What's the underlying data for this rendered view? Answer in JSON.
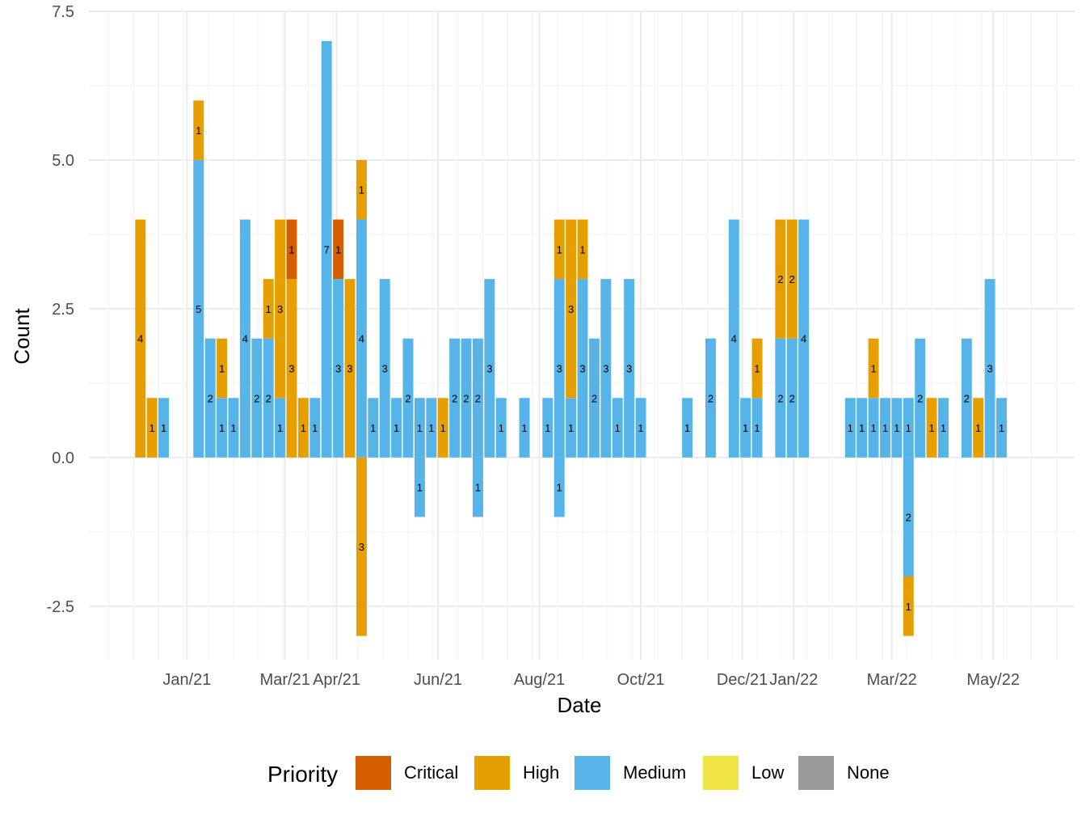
{
  "chart_data": {
    "type": "bar",
    "stacked": true,
    "xlabel": "Date",
    "ylabel": "Count",
    "ylim": [
      -3.4,
      7.5
    ],
    "y_ticks": [
      -2.5,
      0.0,
      2.5,
      5.0,
      7.5
    ],
    "y_tick_labels": [
      "-2.5",
      "0.0",
      "2.5",
      "5.0",
      "7.5"
    ],
    "x_range": [
      "2020-11-03",
      "2022-06-19"
    ],
    "x_ticks": [
      {
        "date": "2021-01-01",
        "label": "Jan/21"
      },
      {
        "date": "2021-03-01",
        "label": "Mar/21"
      },
      {
        "date": "2021-04-01",
        "label": "Apr/21"
      },
      {
        "date": "2021-06-01",
        "label": "Jun/21"
      },
      {
        "date": "2021-08-01",
        "label": "Aug/21"
      },
      {
        "date": "2021-10-01",
        "label": "Oct/21"
      },
      {
        "date": "2021-12-01",
        "label": "Dec/21"
      },
      {
        "date": "2022-01-01",
        "label": "Jan/22"
      },
      {
        "date": "2022-03-01",
        "label": "Mar/22"
      },
      {
        "date": "2022-05-01",
        "label": "May/22"
      }
    ],
    "bar_width_days": 6.3,
    "grid": true,
    "legend": {
      "title": "Priority",
      "position": "bottom",
      "items": [
        {
          "name": "Critical",
          "color": "#D55E00"
        },
        {
          "name": "High",
          "color": "#E69F00"
        },
        {
          "name": "Medium",
          "color": "#56B4E9"
        },
        {
          "name": "Low",
          "color": "#F0E442"
        },
        {
          "name": "None",
          "color": "#999999"
        }
      ]
    },
    "colors": {
      "Critical": "#D55E00",
      "High": "#E69F00",
      "Medium": "#56B4E9",
      "Low": "#F0E442",
      "None": "#999999"
    },
    "bars": [
      {
        "date": "2020-12-04",
        "segments": [
          {
            "priority": "High",
            "value": 4
          }
        ]
      },
      {
        "date": "2020-12-11",
        "segments": [
          {
            "priority": "High",
            "value": 1
          }
        ]
      },
      {
        "date": "2020-12-18",
        "segments": [
          {
            "priority": "Medium",
            "value": 1
          }
        ]
      },
      {
        "date": "2021-01-08",
        "segments": [
          {
            "priority": "Medium",
            "value": 5
          },
          {
            "priority": "High",
            "value": 1
          }
        ]
      },
      {
        "date": "2021-01-15",
        "segments": [
          {
            "priority": "Medium",
            "value": 2
          }
        ]
      },
      {
        "date": "2021-01-22",
        "segments": [
          {
            "priority": "Medium",
            "value": 1
          },
          {
            "priority": "High",
            "value": 1
          }
        ]
      },
      {
        "date": "2021-01-29",
        "segments": [
          {
            "priority": "Medium",
            "value": 1
          }
        ]
      },
      {
        "date": "2021-02-05",
        "segments": [
          {
            "priority": "Medium",
            "value": 4
          }
        ]
      },
      {
        "date": "2021-02-12",
        "segments": [
          {
            "priority": "Medium",
            "value": 2
          }
        ]
      },
      {
        "date": "2021-02-19",
        "segments": [
          {
            "priority": "Medium",
            "value": 2
          },
          {
            "priority": "High",
            "value": 1
          }
        ]
      },
      {
        "date": "2021-02-26",
        "segments": [
          {
            "priority": "Medium",
            "value": 1
          },
          {
            "priority": "High",
            "value": 3
          }
        ]
      },
      {
        "date": "2021-03-05",
        "segments": [
          {
            "priority": "High",
            "value": 3
          },
          {
            "priority": "Critical",
            "value": 1
          }
        ]
      },
      {
        "date": "2021-03-12",
        "segments": [
          {
            "priority": "High",
            "value": 1
          }
        ]
      },
      {
        "date": "2021-03-19",
        "segments": [
          {
            "priority": "Medium",
            "value": 1
          }
        ]
      },
      {
        "date": "2021-03-19",
        "segments": []
      },
      {
        "date": "2021-03-26",
        "segments": [
          {
            "priority": "Medium",
            "value": 7
          }
        ]
      },
      {
        "date": "2021-04-02",
        "segments": [
          {
            "priority": "Medium",
            "value": 3
          },
          {
            "priority": "Critical",
            "value": 1
          }
        ]
      },
      {
        "date": "2021-04-09",
        "segments": [
          {
            "priority": "High",
            "value": 3
          }
        ]
      },
      {
        "date": "2021-04-16",
        "segments": [
          {
            "priority": "Medium",
            "value": 4
          },
          {
            "priority": "High",
            "value": 1
          },
          {
            "priority": "High",
            "value": -3
          }
        ]
      },
      {
        "date": "2021-04-23",
        "segments": [
          {
            "priority": "Medium",
            "value": 1
          }
        ]
      },
      {
        "date": "2021-04-30",
        "segments": [
          {
            "priority": "Medium",
            "value": 3
          }
        ]
      },
      {
        "date": "2021-05-07",
        "segments": [
          {
            "priority": "Medium",
            "value": 1
          }
        ]
      },
      {
        "date": "2021-05-14",
        "segments": [
          {
            "priority": "Medium",
            "value": 2
          }
        ]
      },
      {
        "date": "2021-05-21",
        "segments": [
          {
            "priority": "Medium",
            "value": 1
          },
          {
            "priority": "Medium",
            "value": -1
          }
        ]
      },
      {
        "date": "2021-05-28",
        "segments": [
          {
            "priority": "Medium",
            "value": 1
          }
        ]
      },
      {
        "date": "2021-06-04",
        "segments": [
          {
            "priority": "High",
            "value": 1
          }
        ]
      },
      {
        "date": "2021-06-11",
        "segments": [
          {
            "priority": "Medium",
            "value": 2
          }
        ]
      },
      {
        "date": "2021-06-18",
        "segments": [
          {
            "priority": "Medium",
            "value": 2
          }
        ]
      },
      {
        "date": "2021-06-25",
        "segments": [
          {
            "priority": "Medium",
            "value": 2
          },
          {
            "priority": "Medium",
            "value": -1
          }
        ]
      },
      {
        "date": "2021-07-02",
        "segments": [
          {
            "priority": "Medium",
            "value": 3
          }
        ]
      },
      {
        "date": "2021-07-09",
        "segments": [
          {
            "priority": "Medium",
            "value": 1
          }
        ]
      },
      {
        "date": "2021-07-23",
        "segments": [
          {
            "priority": "Medium",
            "value": 1
          }
        ]
      },
      {
        "date": "2021-08-06",
        "segments": [
          {
            "priority": "Medium",
            "value": 1
          }
        ]
      },
      {
        "date": "2021-08-13",
        "segments": [
          {
            "priority": "Medium",
            "value": 3
          },
          {
            "priority": "High",
            "value": 1
          },
          {
            "priority": "Medium",
            "value": -1
          }
        ]
      },
      {
        "date": "2021-08-20",
        "segments": [
          {
            "priority": "Medium",
            "value": 1
          },
          {
            "priority": "High",
            "value": 3
          }
        ]
      },
      {
        "date": "2021-08-27",
        "segments": [
          {
            "priority": "Medium",
            "value": 3
          },
          {
            "priority": "High",
            "value": 1
          }
        ]
      },
      {
        "date": "2021-09-03",
        "segments": [
          {
            "priority": "Medium",
            "value": 2
          }
        ]
      },
      {
        "date": "2021-09-10",
        "segments": [
          {
            "priority": "Medium",
            "value": 3
          }
        ]
      },
      {
        "date": "2021-09-17",
        "segments": [
          {
            "priority": "Medium",
            "value": 1
          }
        ]
      },
      {
        "date": "2021-09-24",
        "segments": [
          {
            "priority": "Medium",
            "value": 3
          }
        ]
      },
      {
        "date": "2021-10-01",
        "segments": [
          {
            "priority": "Medium",
            "value": 1
          }
        ]
      },
      {
        "date": "2021-10-29",
        "segments": [
          {
            "priority": "Medium",
            "value": 1
          }
        ]
      },
      {
        "date": "2021-11-12",
        "segments": [
          {
            "priority": "Medium",
            "value": 2
          }
        ]
      },
      {
        "date": "2021-11-26",
        "segments": [
          {
            "priority": "Medium",
            "value": 4
          }
        ]
      },
      {
        "date": "2021-12-03",
        "segments": [
          {
            "priority": "Medium",
            "value": 1
          }
        ]
      },
      {
        "date": "2021-12-10",
        "segments": [
          {
            "priority": "Medium",
            "value": 1
          },
          {
            "priority": "High",
            "value": 1
          }
        ]
      },
      {
        "date": "2021-12-24",
        "segments": [
          {
            "priority": "Medium",
            "value": 2
          },
          {
            "priority": "High",
            "value": 2
          }
        ]
      },
      {
        "date": "2021-12-31",
        "segments": [
          {
            "priority": "Medium",
            "value": 2
          },
          {
            "priority": "High",
            "value": 2
          }
        ]
      },
      {
        "date": "2022-01-07",
        "segments": [
          {
            "priority": "Medium",
            "value": 4
          }
        ]
      },
      {
        "date": "2022-02-04",
        "segments": [
          {
            "priority": "Medium",
            "value": 1
          }
        ]
      },
      {
        "date": "2022-02-11",
        "segments": [
          {
            "priority": "Medium",
            "value": 1
          }
        ]
      },
      {
        "date": "2022-02-18",
        "segments": [
          {
            "priority": "Medium",
            "value": 1
          },
          {
            "priority": "High",
            "value": 1
          }
        ]
      },
      {
        "date": "2022-02-25",
        "segments": [
          {
            "priority": "Medium",
            "value": 1
          }
        ]
      },
      {
        "date": "2022-03-04",
        "segments": [
          {
            "priority": "Medium",
            "value": 1
          }
        ]
      },
      {
        "date": "2022-03-11",
        "segments": [
          {
            "priority": "Medium",
            "value": 1
          },
          {
            "priority": "Medium",
            "value": -2
          },
          {
            "priority": "High",
            "value": -1
          }
        ]
      },
      {
        "date": "2022-03-18",
        "segments": [
          {
            "priority": "Medium",
            "value": 2
          }
        ]
      },
      {
        "date": "2022-03-25",
        "segments": [
          {
            "priority": "High",
            "value": 1
          }
        ]
      },
      {
        "date": "2022-04-01",
        "segments": [
          {
            "priority": "Medium",
            "value": 1
          }
        ]
      },
      {
        "date": "2022-04-15",
        "segments": [
          {
            "priority": "Medium",
            "value": 2
          }
        ]
      },
      {
        "date": "2022-04-22",
        "segments": [
          {
            "priority": "High",
            "value": 1
          }
        ]
      },
      {
        "date": "2022-04-29",
        "segments": [
          {
            "priority": "Medium",
            "value": 3
          }
        ]
      },
      {
        "date": "2022-05-06",
        "segments": [
          {
            "priority": "Medium",
            "value": 1
          }
        ]
      }
    ]
  }
}
